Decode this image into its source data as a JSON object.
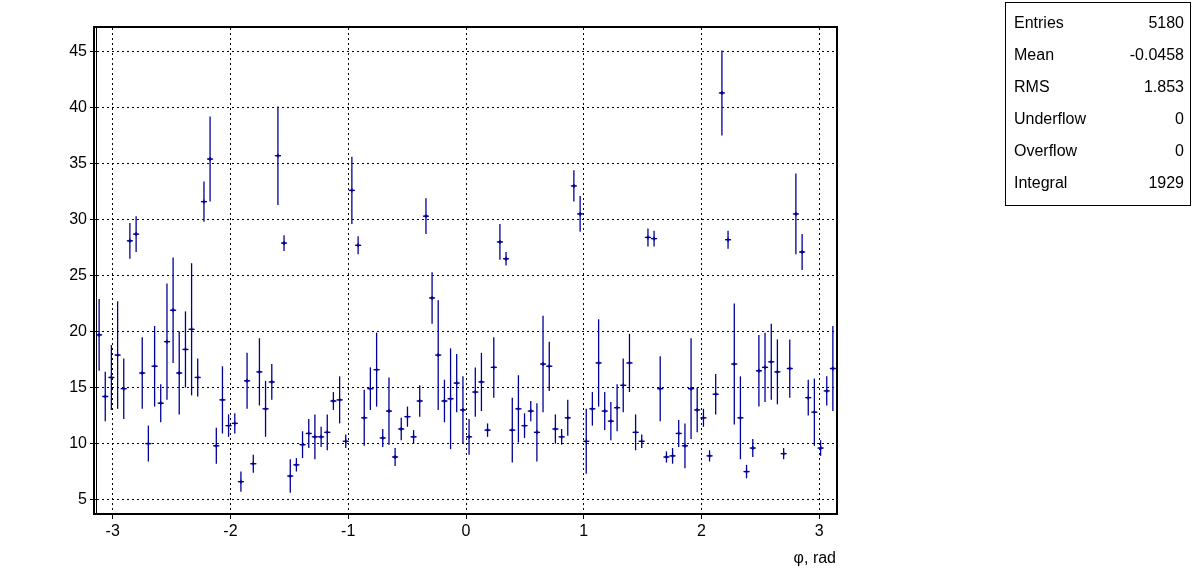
{
  "chart_data": {
    "type": "scatter",
    "xlabel": "φ, rad",
    "color": "#000099",
    "marker": "cross",
    "x": [
      -3.115,
      -3.063,
      -3.011,
      -2.958,
      -2.906,
      -2.854,
      -2.801,
      -2.749,
      -2.697,
      -2.644,
      -2.592,
      -2.539,
      -2.487,
      -2.435,
      -2.382,
      -2.33,
      -2.278,
      -2.225,
      -2.173,
      -2.12,
      -2.068,
      -2.016,
      -1.963,
      -1.911,
      -1.859,
      -1.806,
      -1.754,
      -1.702,
      -1.649,
      -1.597,
      -1.545,
      -1.492,
      -1.44,
      -1.388,
      -1.335,
      -1.283,
      -1.23,
      -1.178,
      -1.126,
      -1.073,
      -1.021,
      -0.969,
      -0.916,
      -0.864,
      -0.812,
      -0.759,
      -0.707,
      -0.654,
      -0.602,
      -0.55,
      -0.497,
      -0.445,
      -0.393,
      -0.34,
      -0.288,
      -0.236,
      -0.183,
      -0.131,
      -0.079,
      -0.026,
      0.026,
      0.079,
      0.131,
      0.183,
      0.236,
      0.288,
      0.34,
      0.393,
      0.445,
      0.497,
      0.55,
      0.602,
      0.654,
      0.707,
      0.759,
      0.812,
      0.864,
      0.916,
      0.969,
      1.021,
      1.073,
      1.126,
      1.178,
      1.23,
      1.283,
      1.335,
      1.388,
      1.44,
      1.492,
      1.545,
      1.597,
      1.649,
      1.702,
      1.754,
      1.806,
      1.859,
      1.911,
      1.963,
      2.016,
      2.068,
      2.12,
      2.173,
      2.225,
      2.278,
      2.33,
      2.382,
      2.435,
      2.487,
      2.539,
      2.592,
      2.644,
      2.697,
      2.749,
      2.801,
      2.854,
      2.906,
      2.958,
      3.011,
      3.063,
      3.115
    ],
    "values": [
      19.7,
      14.2,
      15.9,
      17.9,
      14.9,
      28.1,
      28.7,
      16.3,
      10.0,
      16.9,
      13.6,
      19.1,
      21.9,
      16.3,
      18.4,
      20.2,
      15.9,
      31.6,
      35.4,
      9.8,
      13.9,
      11.6,
      11.8,
      6.6,
      15.6,
      8.2,
      16.4,
      13.1,
      15.5,
      35.7,
      27.9,
      7.1,
      8.1,
      9.9,
      10.9,
      10.6,
      10.6,
      11.0,
      13.8,
      13.9,
      10.2,
      32.6,
      27.7,
      12.3,
      14.9,
      16.6,
      10.5,
      12.9,
      8.8,
      11.3,
      12.4,
      10.6,
      13.8,
      30.3,
      23.0,
      17.9,
      13.8,
      14.0,
      15.4,
      13.0,
      10.6,
      14.6,
      15.5,
      11.2,
      16.8,
      28.0,
      26.5,
      11.2,
      13.1,
      11.6,
      12.9,
      11.0,
      17.1,
      16.9,
      11.3,
      10.6,
      12.3,
      33.0,
      30.5,
      10.2,
      13.1,
      17.2,
      12.9,
      12.0,
      13.2,
      15.2,
      17.2,
      11.0,
      10.2,
      28.4,
      28.3,
      14.9,
      8.8,
      8.9,
      10.9,
      9.8,
      14.9,
      13.0,
      12.3,
      8.9,
      14.4,
      41.3,
      28.2,
      17.1,
      12.3,
      7.5,
      9.6,
      16.5,
      16.8,
      17.3,
      16.4,
      9.1,
      16.7,
      30.5,
      27.1,
      14.1,
      12.8,
      9.6,
      14.7,
      16.7
    ],
    "errors": [
      3.2,
      2.2,
      2.9,
      4.8,
      2.7,
      1.6,
      1.6,
      3.2,
      1.6,
      3.6,
      1.7,
      5.2,
      4.7,
      3.7,
      3.4,
      5.9,
      1.7,
      1.8,
      3.8,
      1.6,
      3.0,
      1.0,
      0.9,
      0.9,
      2.5,
      0.8,
      3.0,
      2.5,
      1.6,
      4.4,
      0.7,
      1.5,
      0.6,
      1.2,
      1.3,
      2.0,
      0.9,
      1.6,
      0.8,
      2.1,
      0.6,
      3.0,
      0.8,
      2.5,
      1.9,
      3.3,
      0.8,
      3.0,
      0.8,
      1.0,
      0.9,
      0.6,
      1.4,
      1.6,
      2.3,
      4.9,
      1.9,
      4.5,
      2.6,
      3.0,
      1.6,
      2.2,
      2.6,
      0.6,
      2.7,
      1.6,
      0.6,
      2.9,
      3.0,
      1.1,
      0.9,
      2.6,
      4.3,
      2.2,
      1.3,
      0.7,
      1.6,
      1.4,
      1.6,
      2.9,
      1.5,
      3.9,
      1.7,
      1.7,
      2.1,
      2.4,
      2.6,
      1.6,
      0.6,
      0.8,
      0.7,
      2.9,
      0.5,
      0.7,
      1.2,
      2.0,
      4.5,
      2.0,
      0.8,
      0.5,
      1.8,
      3.8,
      0.8,
      5.4,
      3.7,
      0.6,
      0.8,
      3.2,
      3.1,
      3.4,
      2.9,
      0.5,
      2.6,
      3.6,
      1.6,
      1.6,
      3.0,
      0.7,
      1.3,
      3.8
    ],
    "xerrors": [
      0.026,
      0.026,
      0.026,
      0.026,
      0.026,
      0.026,
      0.026,
      0.026,
      0.026,
      0.026,
      0.026,
      0.026,
      0.026,
      0.026,
      0.026,
      0.026,
      0.026,
      0.026,
      0.026,
      0.026,
      0.026,
      0.026,
      0.026,
      0.026,
      0.026,
      0.026,
      0.026,
      0.026,
      0.026,
      0.026,
      0.026,
      0.026,
      0.026,
      0.026,
      0.026,
      0.026,
      0.026,
      0.026,
      0.026,
      0.026,
      0.026,
      0.026,
      0.026,
      0.026,
      0.026,
      0.026,
      0.026,
      0.026,
      0.026,
      0.026,
      0.026,
      0.026,
      0.026,
      0.026,
      0.026,
      0.026,
      0.026,
      0.026,
      0.026,
      0.026,
      0.026,
      0.026,
      0.026,
      0.026,
      0.026,
      0.026,
      0.026,
      0.026,
      0.026,
      0.026,
      0.026,
      0.026,
      0.026,
      0.026,
      0.026,
      0.026,
      0.026,
      0.026,
      0.026,
      0.026,
      0.026,
      0.026,
      0.026,
      0.026,
      0.026,
      0.026,
      0.026,
      0.026,
      0.026,
      0.026,
      0.026,
      0.026,
      0.026,
      0.026,
      0.026,
      0.026,
      0.026,
      0.026,
      0.026,
      0.026,
      0.026,
      0.026,
      0.026,
      0.026,
      0.026,
      0.026,
      0.026,
      0.026,
      0.026,
      0.026,
      0.026,
      0.026,
      0.026,
      0.026,
      0.026,
      0.026,
      0.026,
      0.026,
      0.026,
      0.026
    ],
    "xlim": [
      -3.1416,
      3.1416
    ],
    "ylim": [
      3.8,
      47.1
    ],
    "xticks": [
      -3,
      -2,
      -1,
      0,
      1,
      2,
      3
    ],
    "yticks": [
      5,
      10,
      15,
      20,
      25,
      30,
      35,
      40,
      45
    ],
    "grid": true,
    "annotations": [
      "Entries",
      "5180",
      "Mean",
      "-0.0458",
      "RMS",
      "1.853",
      "Underflow",
      "0",
      "Overflow",
      "0",
      "Integral",
      "1929"
    ]
  }
}
